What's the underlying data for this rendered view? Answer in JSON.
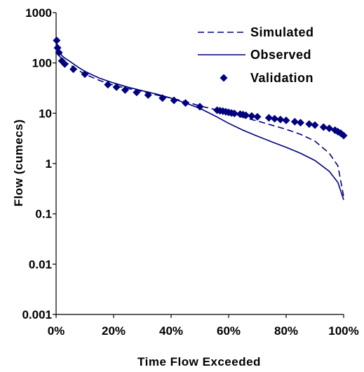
{
  "chart_data": {
    "type": "line",
    "xlabel": "Time Flow Exceeded",
    "ylabel": "Flow (cumecs)",
    "x_scale": "linear",
    "y_scale": "log",
    "xlim": [
      0,
      100
    ],
    "ylim": [
      0.001,
      1000
    ],
    "x_ticks": [
      "0%",
      "20%",
      "40%",
      "60%",
      "80%",
      "100%"
    ],
    "y_ticks": [
      "0.001",
      "0.01",
      "0.1",
      "1",
      "10",
      "100",
      "1000"
    ],
    "grid": false,
    "legend_position": "top-right",
    "series": [
      {
        "name": "Simulated",
        "style": "dashed-line",
        "color": "#00007f",
        "x": [
          0,
          0.5,
          1,
          2,
          3,
          5,
          8,
          10,
          15,
          20,
          25,
          30,
          35,
          40,
          45,
          50,
          55,
          60,
          65,
          70,
          75,
          80,
          85,
          90,
          95,
          98,
          100
        ],
        "y": [
          250,
          170,
          140,
          120,
          105,
          90,
          70,
          60,
          45,
          36,
          31,
          27,
          23,
          20,
          17,
          14,
          12,
          10,
          8.3,
          7.0,
          5.8,
          4.8,
          3.8,
          2.8,
          1.6,
          0.9,
          0.22
        ]
      },
      {
        "name": "Observed",
        "style": "solid-line",
        "color": "#00007f",
        "x": [
          0,
          0.5,
          1,
          2,
          3,
          5,
          8,
          10,
          15,
          20,
          25,
          30,
          35,
          40,
          45,
          50,
          55,
          60,
          65,
          70,
          75,
          80,
          85,
          90,
          95,
          98,
          100
        ],
        "y": [
          280,
          210,
          170,
          140,
          125,
          105,
          80,
          68,
          50,
          40,
          33,
          28,
          24,
          20,
          16,
          12.5,
          9.0,
          6.3,
          4.6,
          3.5,
          2.7,
          2.1,
          1.6,
          1.15,
          0.7,
          0.42,
          0.19
        ]
      },
      {
        "name": "Validation",
        "style": "diamond-markers",
        "color": "#00007f",
        "x": [
          0.2,
          0.5,
          1,
          2,
          3,
          6,
          10,
          18,
          21,
          24,
          28,
          32,
          37,
          41,
          45,
          50,
          56,
          57,
          58,
          59,
          60,
          61,
          62,
          64,
          65,
          66,
          68,
          70,
          74,
          76,
          78,
          80,
          83,
          85,
          88,
          90,
          93,
          95,
          97,
          98,
          99,
          100
        ],
        "y": [
          280,
          200,
          160,
          110,
          95,
          75,
          60,
          37,
          33,
          29,
          26,
          23,
          20,
          18,
          16,
          13.5,
          11.5,
          11.2,
          11.0,
          10.7,
          10.4,
          10.1,
          9.9,
          9.6,
          9.4,
          9.1,
          8.8,
          8.5,
          8.1,
          7.8,
          7.5,
          7.2,
          6.8,
          6.5,
          6.1,
          5.8,
          5.3,
          5.0,
          4.6,
          4.3,
          4.0,
          3.6
        ]
      }
    ]
  }
}
